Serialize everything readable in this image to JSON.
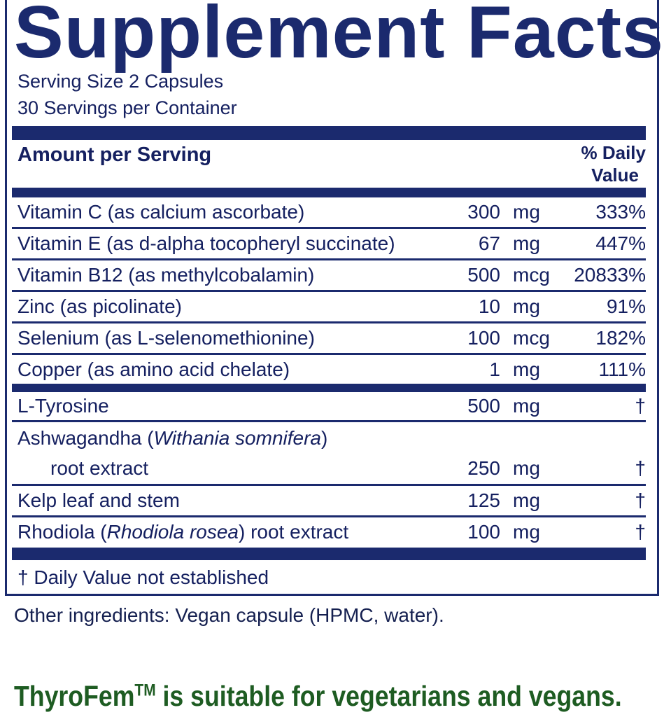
{
  "title": "Supplement Facts",
  "serving_size": "Serving Size 2 Capsules",
  "servings_per_container": "30 Servings per Container",
  "header": {
    "amount": "Amount per Serving",
    "dv_line1": "% Daily",
    "dv_line2": "Value"
  },
  "rows": [
    {
      "name": "Vitamin C (as calcium ascorbate)",
      "amount": "300",
      "unit": "mg",
      "dv": "333%"
    },
    {
      "name": "Vitamin E (as d-alpha tocopheryl succinate)",
      "amount": "67",
      "unit": "mg",
      "dv": "447%"
    },
    {
      "name": "Vitamin B12 (as methylcobalamin)",
      "amount": "500",
      "unit": "mcg",
      "dv": "20833%"
    },
    {
      "name": "Zinc (as picolinate)",
      "amount": "10",
      "unit": "mg",
      "dv": "91%"
    },
    {
      "name": "Selenium (as L-selenomethionine)",
      "amount": "100",
      "unit": "mcg",
      "dv": "182%"
    },
    {
      "name": "Copper (as amino acid chelate)",
      "amount": "1",
      "unit": "mg",
      "dv": "111%"
    },
    {
      "name": "L-Tyrosine",
      "amount": "500",
      "unit": "mg",
      "dv": "†"
    },
    {
      "name_pre": "Ashwagandha (",
      "name_italic": "Withania somnifera",
      "name_post": ")",
      "name_line2": "root extract",
      "amount": "250",
      "unit": "mg",
      "dv": "†"
    },
    {
      "name": "Kelp leaf and stem",
      "amount": "125",
      "unit": "mg",
      "dv": "†"
    },
    {
      "name_pre": "Rhodiola (",
      "name_italic": "Rhodiola rosea",
      "name_post": ") root extract",
      "amount": "100",
      "unit": "mg",
      "dv": "†"
    }
  ],
  "footnote": "†  Daily Value not established",
  "other_ingredients": "Other ingredients: Vegan capsule (HPMC, water).",
  "tagline": {
    "brand": "ThyroFem",
    "tm": "TM",
    "text": " is suitable for vegetarians and vegans."
  },
  "colors": {
    "navy": "#1b2a6e",
    "green": "#1e5c22"
  }
}
